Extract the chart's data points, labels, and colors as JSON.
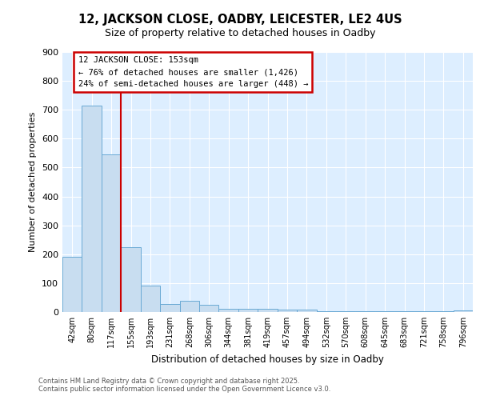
{
  "title1": "12, JACKSON CLOSE, OADBY, LEICESTER, LE2 4US",
  "title2": "Size of property relative to detached houses in Oadby",
  "xlabel": "Distribution of detached houses by size in Oadby",
  "ylabel": "Number of detached properties",
  "bar_labels": [
    "42sqm",
    "80sqm",
    "117sqm",
    "155sqm",
    "193sqm",
    "231sqm",
    "268sqm",
    "306sqm",
    "344sqm",
    "381sqm",
    "419sqm",
    "457sqm",
    "494sqm",
    "532sqm",
    "570sqm",
    "608sqm",
    "645sqm",
    "683sqm",
    "721sqm",
    "758sqm",
    "796sqm"
  ],
  "bar_values": [
    190,
    715,
    545,
    225,
    92,
    28,
    40,
    25,
    12,
    11,
    11,
    9,
    9,
    4,
    3,
    2,
    2,
    2,
    2,
    2,
    6
  ],
  "bar_color": "#c8ddf0",
  "bar_edge_color": "#6aaad4",
  "vline_color": "#cc0000",
  "vline_pos": 2.5,
  "ylim": [
    0,
    900
  ],
  "yticks": [
    0,
    100,
    200,
    300,
    400,
    500,
    600,
    700,
    800,
    900
  ],
  "plot_bg_color": "#ddeeff",
  "grid_color": "#ffffff",
  "fig_bg_color": "#ffffff",
  "annotation_title": "12 JACKSON CLOSE: 153sqm",
  "annotation_line1": "← 76% of detached houses are smaller (1,426)",
  "annotation_line2": "24% of semi-detached houses are larger (448) →",
  "annotation_box_edge": "#cc0000",
  "footer1": "Contains HM Land Registry data © Crown copyright and database right 2025.",
  "footer2": "Contains public sector information licensed under the Open Government Licence v3.0."
}
